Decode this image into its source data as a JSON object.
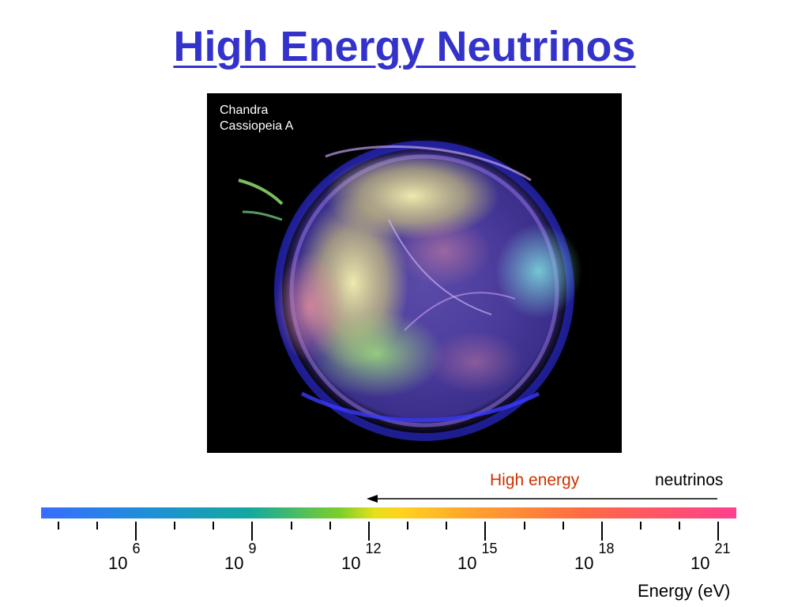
{
  "slide": {
    "title": "High Energy Neutrinos"
  },
  "image": {
    "caption_line1": "Chandra",
    "caption_line2": "Cassiopeia A"
  },
  "energy_scale": {
    "high_energy_label": "High energy",
    "neutrinos_label": "neutrinos",
    "axis_label": "Energy (eV)",
    "tick_labels": [
      {
        "base": "10",
        "exponent": "6"
      },
      {
        "base": "10",
        "exponent": "9"
      },
      {
        "base": "10",
        "exponent": "12"
      },
      {
        "base": "10",
        "exponent": "15"
      },
      {
        "base": "10",
        "exponent": "18"
      },
      {
        "base": "10",
        "exponent": "21"
      }
    ],
    "colors": {
      "title": "#3333cc",
      "high_energy_label": "#cc3300",
      "spectrum_start": "#3a6cff",
      "spectrum_end": "#ff3f8e"
    }
  }
}
